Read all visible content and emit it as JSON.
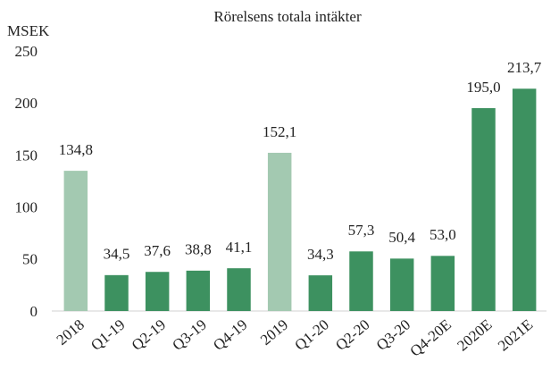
{
  "chart_data": {
    "type": "bar",
    "title": "Rörelsens totala intäkter",
    "y_label": "MSEK",
    "categories": [
      "2018",
      "Q1-19",
      "Q2-19",
      "Q3-19",
      "Q4-19",
      "2019",
      "Q1-20",
      "Q2-20",
      "Q3-20",
      "Q4-20E",
      "2020E",
      "2021E"
    ],
    "values": [
      134.8,
      34.5,
      37.6,
      38.8,
      41.1,
      152.1,
      34.3,
      57.3,
      50.4,
      53.0,
      195.0,
      213.7
    ],
    "value_labels": [
      "134,8",
      "34,5",
      "37,6",
      "38,8",
      "41,1",
      "152,1",
      "34,3",
      "57,3",
      "50,4",
      "53,0",
      "195,0",
      "213,7"
    ],
    "colors": [
      "#a3c9b1",
      "#3d9160",
      "#3d9160",
      "#3d9160",
      "#3d9160",
      "#a3c9b1",
      "#3d9160",
      "#3d9160",
      "#3d9160",
      "#3d9160",
      "#3d9160",
      "#3d9160"
    ],
    "ylim": [
      0,
      250
    ],
    "yticks": [
      0,
      50,
      100,
      150,
      200,
      250
    ],
    "grid": false
  }
}
